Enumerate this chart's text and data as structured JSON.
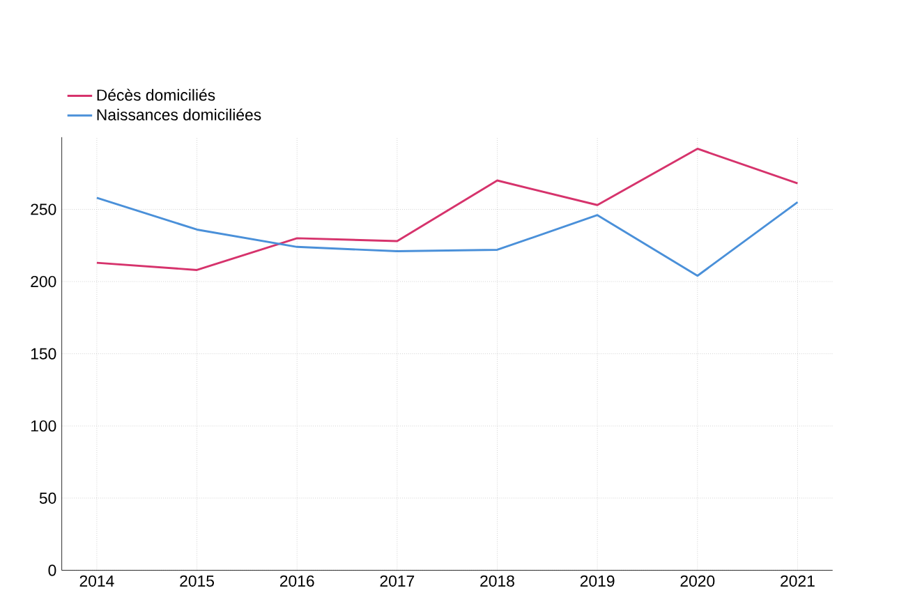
{
  "chart_data": {
    "type": "line",
    "categories": [
      "2014",
      "2015",
      "2016",
      "2017",
      "2018",
      "2019",
      "2020",
      "2021"
    ],
    "series": [
      {
        "name": "Décès domiciliés",
        "color": "#d6336c",
        "values": [
          213,
          208,
          230,
          228,
          270,
          253,
          292,
          268
        ]
      },
      {
        "name": "Naissances domiciliées",
        "color": "#4a90d9",
        "values": [
          258,
          236,
          224,
          221,
          222,
          246,
          204,
          255
        ]
      }
    ],
    "ylim": [
      0,
      300
    ],
    "yticks": [
      0,
      50,
      100,
      150,
      200,
      250
    ],
    "grid": true,
    "legend": "top left",
    "line_style": "solid"
  }
}
